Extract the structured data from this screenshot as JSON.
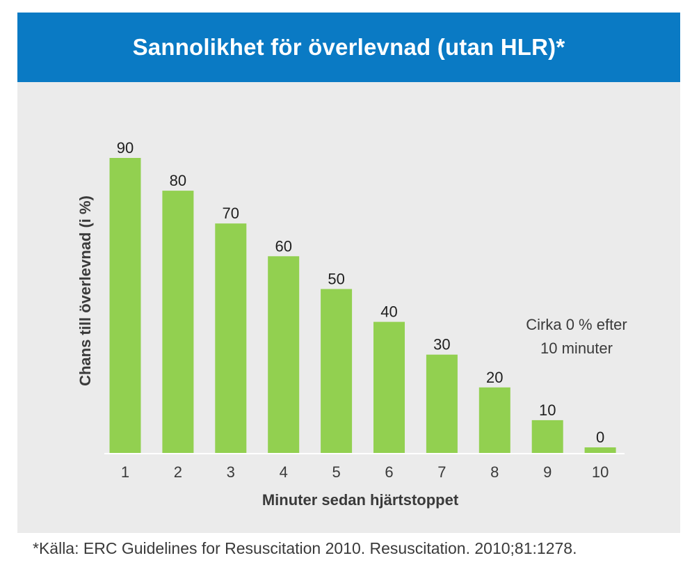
{
  "header": {
    "title": "Sannolikhet för överlevnad (utan HLR)*"
  },
  "chart_data": {
    "type": "bar",
    "categories": [
      "1",
      "2",
      "3",
      "4",
      "5",
      "6",
      "7",
      "8",
      "9",
      "10"
    ],
    "values": [
      90,
      80,
      70,
      60,
      50,
      40,
      30,
      20,
      10,
      0
    ],
    "data_labels": [
      "90",
      "80",
      "70",
      "60",
      "50",
      "40",
      "30",
      "20",
      "10",
      "0"
    ],
    "ylabel": "Chans till överlevnad (i %)",
    "xlabel": "Minuter sedan hjärtstoppet",
    "ylim": [
      0,
      100
    ],
    "grid": false,
    "annotation": [
      "Cirka 0 % efter",
      "10 minuter"
    ],
    "bar_color": "#92d050",
    "axis_color": "#ffffff"
  },
  "footer": {
    "source": "*Källa: ERC Guidelines for Resuscitation 2010. Resuscitation. 2010;81:1278."
  }
}
